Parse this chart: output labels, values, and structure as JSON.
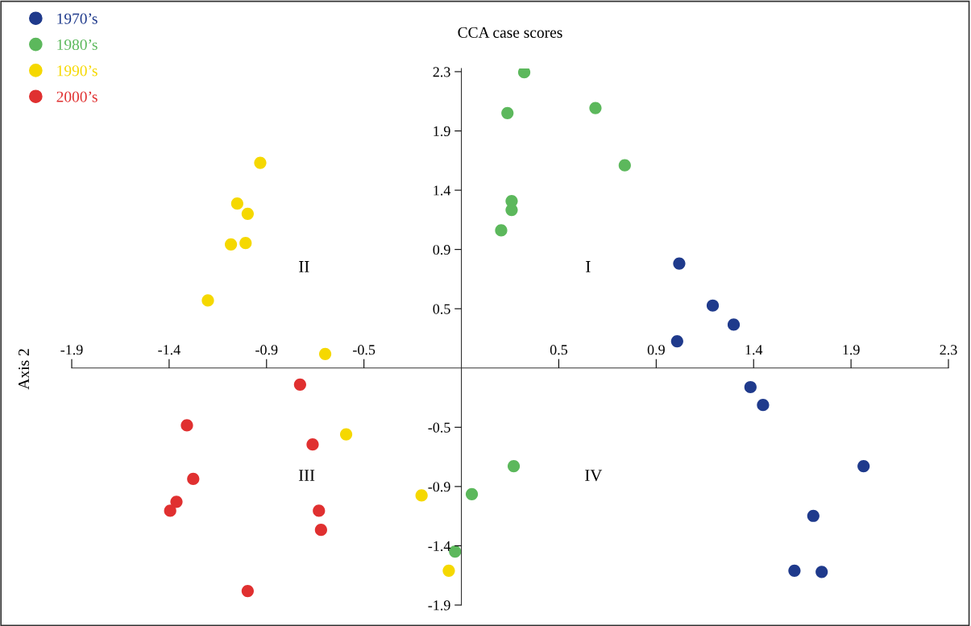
{
  "chart_data": {
    "type": "scatter",
    "title": "CCA case scores",
    "ylabel": "Axis 2",
    "xlim": [
      -1.86,
      2.325
    ],
    "ylim": [
      -1.86,
      2.35
    ],
    "xticks": [
      {
        "value": -1.86,
        "label": "-1.9"
      },
      {
        "value": -1.395,
        "label": "-1.4"
      },
      {
        "value": -0.93,
        "label": "-0.9"
      },
      {
        "value": -0.465,
        "label": "-0.5"
      },
      {
        "value": 0.465,
        "label": "0.5"
      },
      {
        "value": 0.93,
        "label": "0.9"
      },
      {
        "value": 1.395,
        "label": "1.4"
      },
      {
        "value": 1.86,
        "label": "1.9"
      },
      {
        "value": 2.325,
        "label": "2.3"
      }
    ],
    "yticks": [
      {
        "value": -1.86,
        "label": "-1.9"
      },
      {
        "value": -1.395,
        "label": "-1.4"
      },
      {
        "value": -0.93,
        "label": "-0.9"
      },
      {
        "value": -0.465,
        "label": "-0.5"
      },
      {
        "value": 0.465,
        "label": "0.5"
      },
      {
        "value": 0.93,
        "label": "0.9"
      },
      {
        "value": 1.395,
        "label": "1.4"
      },
      {
        "value": 1.86,
        "label": "1.9"
      },
      {
        "value": 2.325,
        "label": "2.3"
      }
    ],
    "grid": false,
    "legend": "top left",
    "marker": "circle",
    "annotations": [
      "I",
      "II",
      "III",
      "IV"
    ],
    "series": [
      {
        "name": "1970’s",
        "color": "#1f3a8c",
        "x": [
          1.04,
          1.2,
          1.3,
          1.03,
          1.38,
          1.44,
          1.92,
          1.68,
          1.59,
          1.72
        ],
        "values": [
          0.82,
          0.49,
          0.34,
          0.21,
          -0.15,
          -0.29,
          -0.77,
          -1.16,
          -1.59,
          -1.6
        ]
      },
      {
        "name": "1980’s",
        "color": "#5cb85c",
        "x": [
          0.3,
          0.64,
          0.22,
          0.78,
          0.24,
          0.24,
          0.19,
          0.25,
          0.05,
          -0.03
        ],
        "values": [
          2.32,
          2.04,
          2.0,
          1.59,
          1.31,
          1.24,
          1.08,
          -0.77,
          -0.99,
          -1.44
        ]
      },
      {
        "name": "1990’s",
        "color": "#f5d800",
        "x": [
          -0.96,
          -1.07,
          -1.02,
          -1.1,
          -1.03,
          -1.21,
          -0.65,
          -0.55,
          -0.19,
          -0.06
        ],
        "values": [
          1.61,
          1.29,
          1.21,
          0.97,
          0.98,
          0.53,
          0.11,
          -0.52,
          -1.0,
          -1.59
        ]
      },
      {
        "name": "2000’s",
        "color": "#e03030",
        "x": [
          -0.77,
          -1.31,
          -0.71,
          -1.28,
          -1.36,
          -1.39,
          -0.68,
          -0.67,
          -1.02
        ],
        "values": [
          -0.13,
          -0.45,
          -0.6,
          -0.87,
          -1.05,
          -1.12,
          -1.12,
          -1.27,
          -1.75
        ]
      }
    ]
  }
}
